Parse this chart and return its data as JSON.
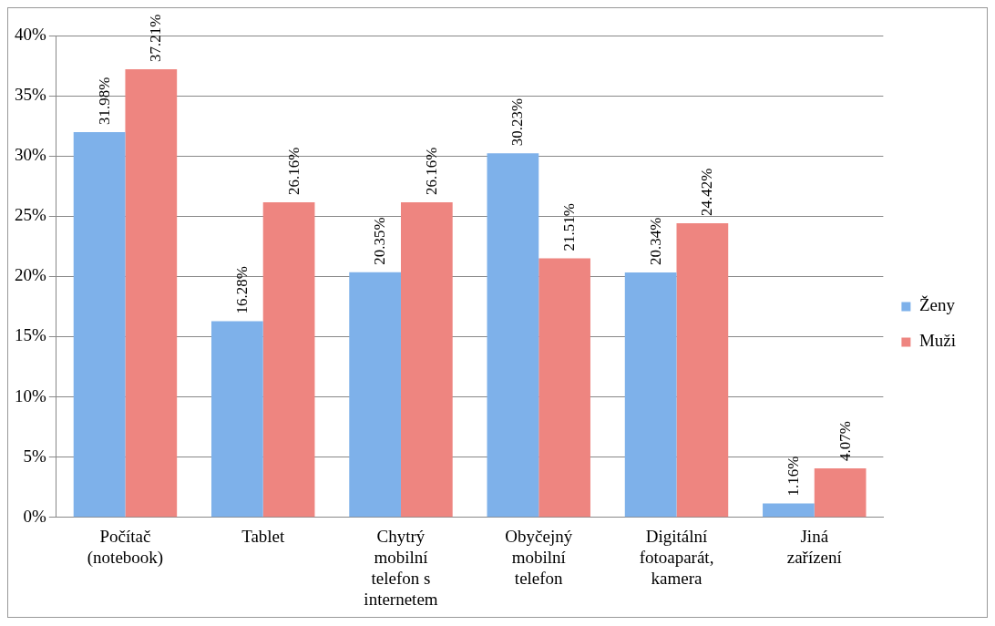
{
  "chart_data": {
    "type": "bar",
    "categories": [
      "Počítač (notebook)",
      "Tablet",
      "Chytrý mobilní telefon s internetem",
      "Obyčejný mobilní telefon",
      "Digitální fotoaparát, kamera",
      "Jiná zařízení"
    ],
    "series": [
      {
        "name": "Ženy",
        "color": "#7eb1ea",
        "values": [
          31.98,
          16.28,
          20.35,
          30.23,
          20.34,
          1.16
        ],
        "value_labels": [
          "31.98%",
          "16.28%",
          "20.35%",
          "30.23%",
          "20.34%",
          "1.16%"
        ]
      },
      {
        "name": "Muži",
        "color": "#ee8580",
        "values": [
          37.21,
          26.16,
          26.16,
          21.51,
          24.42,
          4.07
        ],
        "value_labels": [
          "37.21%",
          "26.16%",
          "26.16%",
          "21.51%",
          "24.42%",
          "4.07%"
        ]
      }
    ],
    "ylim": [
      0,
      40
    ],
    "yticks": [
      {
        "value": 0,
        "label": "0%"
      },
      {
        "value": 5,
        "label": "5%"
      },
      {
        "value": 10,
        "label": "10%"
      },
      {
        "value": 15,
        "label": "15%"
      },
      {
        "value": 20,
        "label": "20%"
      },
      {
        "value": 25,
        "label": "25%"
      },
      {
        "value": 30,
        "label": "30%"
      },
      {
        "value": 35,
        "label": "35%"
      },
      {
        "value": 40,
        "label": "40%"
      }
    ],
    "grid": "y",
    "legend": "right"
  }
}
